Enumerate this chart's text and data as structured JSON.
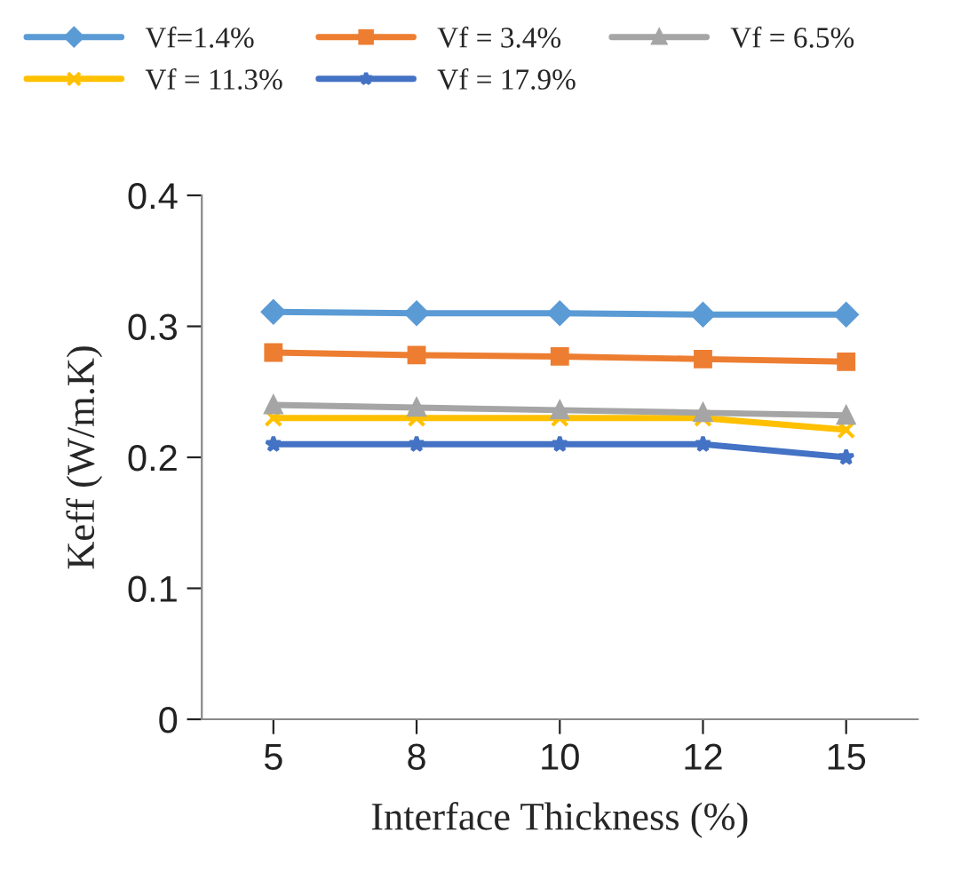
{
  "chart_data": {
    "type": "line",
    "xlabel": "Interface Thickness (%)",
    "ylabel": "Keff (W/m.K)",
    "categories": [
      "5",
      "8",
      "10",
      "12",
      "15"
    ],
    "series": [
      {
        "name": "Vf=1.4%",
        "color": "#5b9bd5",
        "marker": "diamond",
        "values": [
          0.311,
          0.31,
          0.31,
          0.309,
          0.309
        ]
      },
      {
        "name": "Vf = 3.4%",
        "color": "#ed7d31",
        "marker": "square",
        "values": [
          0.28,
          0.278,
          0.277,
          0.275,
          0.273
        ]
      },
      {
        "name": "Vf = 6.5%",
        "color": "#a5a5a5",
        "marker": "triangle",
        "values": [
          0.24,
          0.238,
          0.236,
          0.234,
          0.232
        ]
      },
      {
        "name": "Vf = 11.3%",
        "color": "#ffc000",
        "marker": "cross",
        "values": [
          0.23,
          0.23,
          0.23,
          0.23,
          0.221
        ]
      },
      {
        "name": "Vf = 17.9%",
        "color": "#4472c4",
        "marker": "star",
        "values": [
          0.21,
          0.21,
          0.21,
          0.21,
          0.2
        ]
      }
    ],
    "ylim": [
      0,
      0.4
    ],
    "yticks": [
      {
        "value": 0,
        "label": "0"
      },
      0.1,
      0.2,
      0.3,
      0.4
    ],
    "grid": false,
    "legend": "top",
    "line_style": "solid"
  }
}
